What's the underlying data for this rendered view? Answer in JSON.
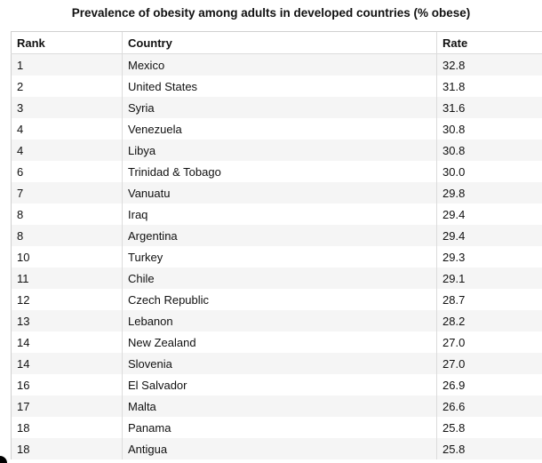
{
  "title": "Prevalence of obesity among adults in developed countries (% obese)",
  "chart_data": {
    "type": "table",
    "title": "Prevalence of obesity among adults in developed countries (% obese)",
    "columns": [
      "Rank",
      "Country",
      "Rate"
    ],
    "rows": [
      [
        "1",
        "Mexico",
        "32.8"
      ],
      [
        "2",
        "United States",
        "31.8"
      ],
      [
        "3",
        "Syria",
        "31.6"
      ],
      [
        "4",
        "Venezuela",
        "30.8"
      ],
      [
        "4",
        "Libya",
        "30.8"
      ],
      [
        "6",
        "Trinidad & Tobago",
        "30.0"
      ],
      [
        "7",
        "Vanuatu",
        "29.8"
      ],
      [
        "8",
        "Iraq",
        "29.4"
      ],
      [
        "8",
        "Argentina",
        "29.4"
      ],
      [
        "10",
        "Turkey",
        "29.3"
      ],
      [
        "11",
        "Chile",
        "29.1"
      ],
      [
        "12",
        "Czech Republic",
        "28.7"
      ],
      [
        "13",
        "Lebanon",
        "28.2"
      ],
      [
        "14",
        "New Zealand",
        "27.0"
      ],
      [
        "14",
        "Slovenia",
        "27.0"
      ],
      [
        "16",
        "El Salvador",
        "26.9"
      ],
      [
        "17",
        "Malta",
        "26.6"
      ],
      [
        "18",
        "Panama",
        "25.8"
      ],
      [
        "18",
        "Antigua",
        "25.8"
      ]
    ]
  },
  "colors": {
    "stripe": "#f5f5f5",
    "grid": "#dcdcdc",
    "text": "#111111"
  }
}
